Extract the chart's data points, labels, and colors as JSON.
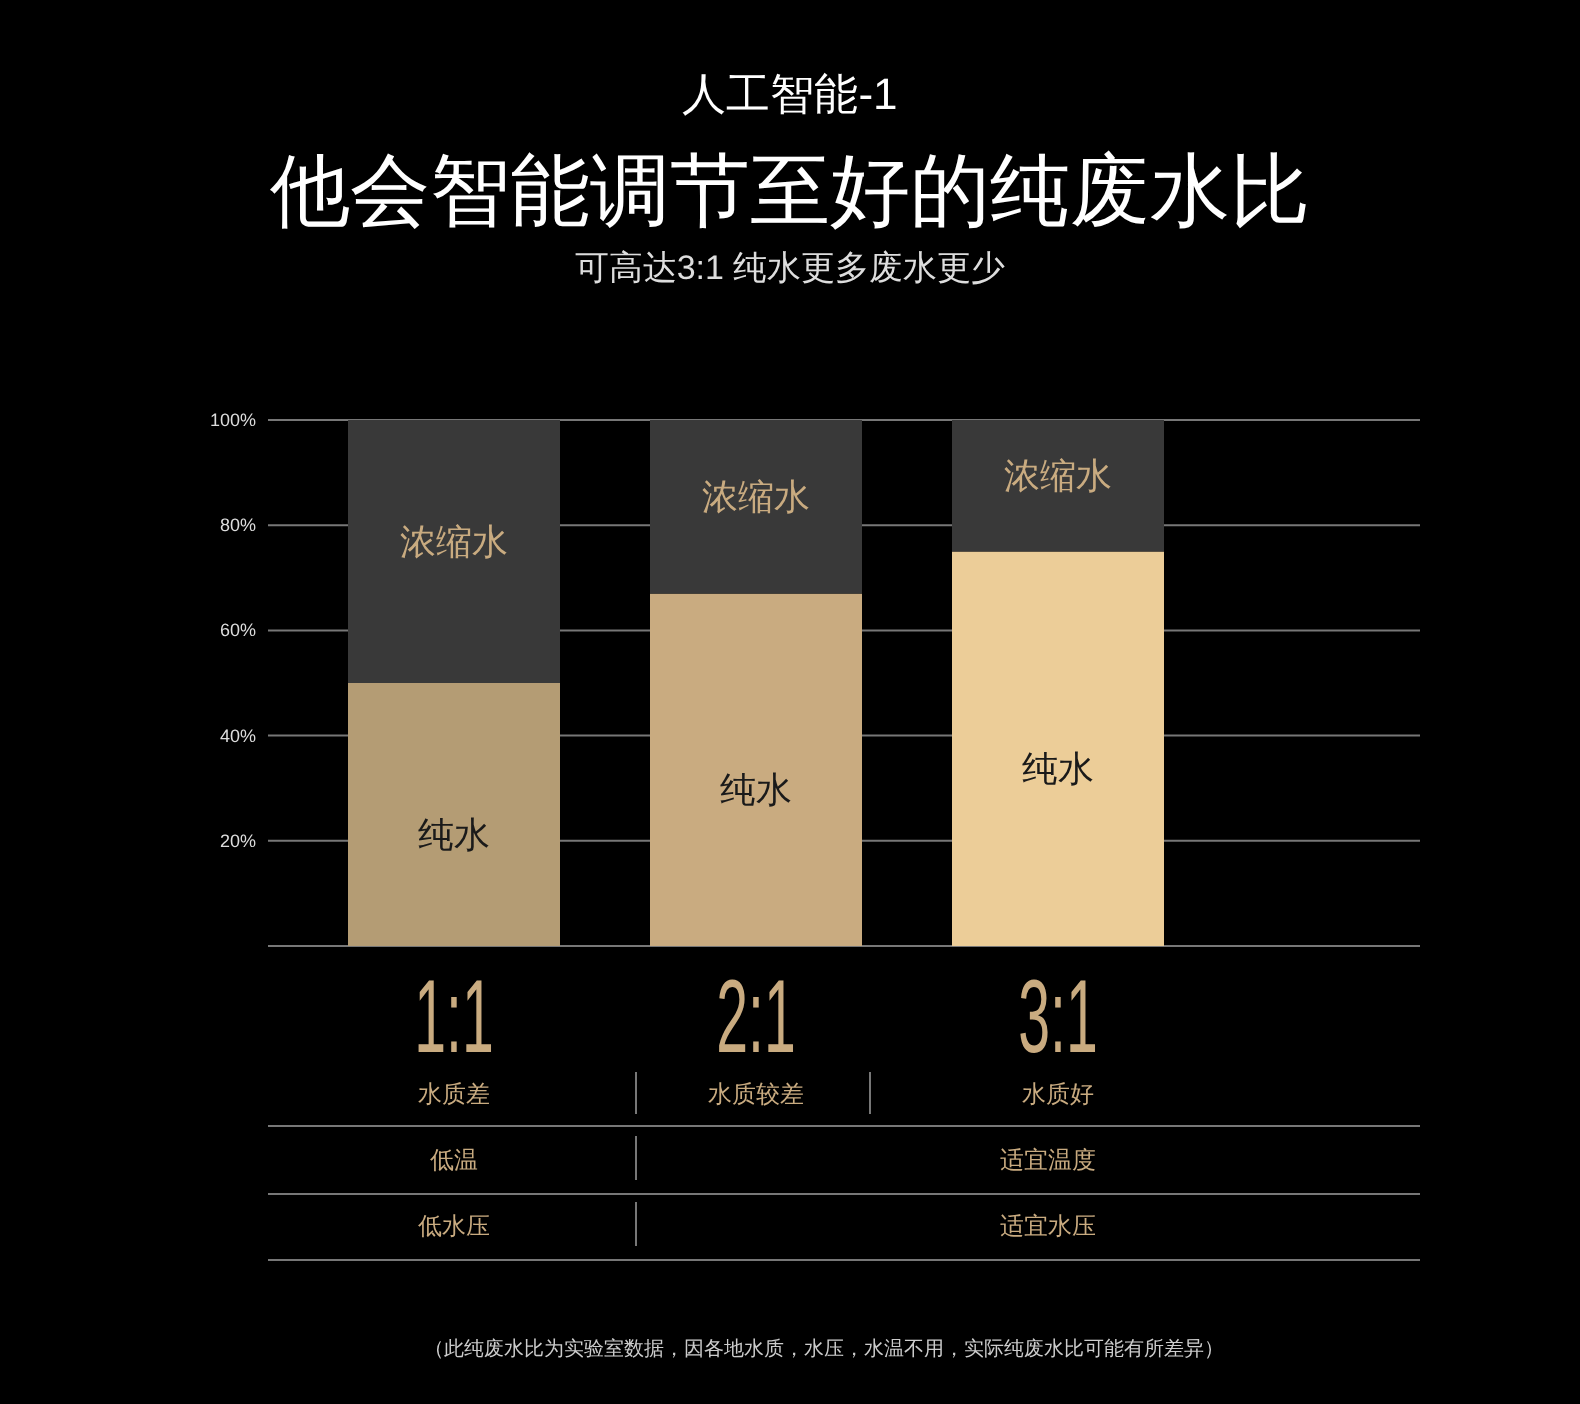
{
  "chart_data": {
    "type": "bar",
    "stacked": true,
    "title": "他会智能调节至好的纯废水比",
    "subtitle": "可高达3:1  纯水更多废水更少",
    "categories": [
      "1:1",
      "2:1",
      "3:1"
    ],
    "series": [
      {
        "name": "纯水",
        "colors": [
          "#b49c74",
          "#c9ab80",
          "#eccd98"
        ],
        "values": [
          50,
          67,
          75
        ]
      },
      {
        "name": "浓缩水",
        "color": "#393939",
        "values": [
          50,
          33,
          25
        ]
      }
    ],
    "ylim": [
      0,
      100
    ],
    "yticks": [
      {
        "value": 0,
        "label": null
      },
      {
        "value": 20,
        "label": "20%"
      },
      {
        "value": 40,
        "label": "40%"
      },
      {
        "value": 60,
        "label": "60%"
      },
      {
        "value": 80,
        "label": "80%"
      },
      {
        "value": 100,
        "label": "100%"
      }
    ],
    "grid": "y",
    "annotations": [
      "人工智能-1",
      "水质差",
      "水质较差",
      "水质好",
      "低温",
      "适宜温度",
      "低水压",
      "适宜水压",
      "（此纯废水比为实验室数据，因各地水质，水压，水温不用，实际纯废水比可能有所差异）"
    ]
  }
}
